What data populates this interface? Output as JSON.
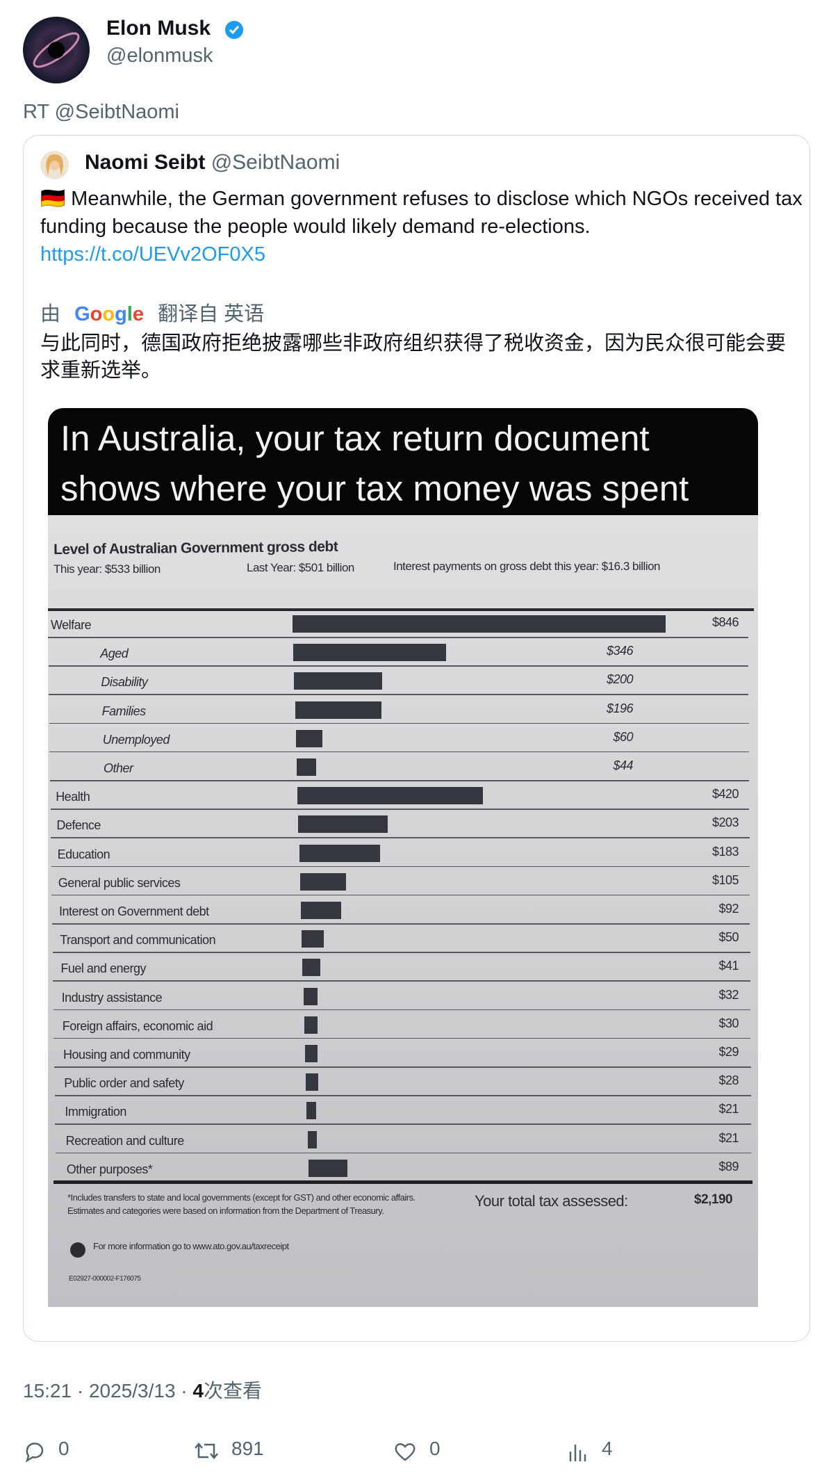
{
  "author": {
    "name": "Elon Musk",
    "handle": "@elonmusk"
  },
  "retweet_label": "RT @SeibtNaomi",
  "quoted": {
    "name": "Naomi Seibt",
    "handle": "@SeibtNaomi",
    "flag": "🇩🇪",
    "text": "Meanwhile, the German government refuses to disclose which NGOs received tax funding because the people would likely demand re-elections.",
    "link": "https://t.co/UEVv2OF0X5",
    "translation_prefix": "由",
    "translation_brand": "Google",
    "translation_suffix": "翻译自 英语",
    "translated_text": "与此同时，德国政府拒绝披露哪些非政府组织获得了税收资金，因为民众很可能会要求重新选举。"
  },
  "image": {
    "banner": [
      "In Australia, your tax return document",
      "shows where your tax money was spent"
    ],
    "debt_title": "Level of Australian Government gross debt",
    "debt_this_year": "This year: $533 billion",
    "debt_last_year": "Last Year: $501 billion",
    "debt_interest": "Interest payments on gross debt this year: $16.3 billion",
    "rows": [
      {
        "label": "Welfare",
        "value": 846,
        "value_label": "$846",
        "items": [
          {
            "label": "Aged",
            "value": 346,
            "value_label": "$346"
          },
          {
            "label": "Disability",
            "value": 200,
            "value_label": "$200"
          },
          {
            "label": "Families",
            "value": 196,
            "value_label": "$196"
          },
          {
            "label": "Unemployed",
            "value": 60,
            "value_label": "$60"
          },
          {
            "label": "Other",
            "value": 44,
            "value_label": "$44"
          }
        ]
      },
      {
        "label": "Health",
        "value": 420,
        "value_label": "$420"
      },
      {
        "label": "Defence",
        "value": 203,
        "value_label": "$203"
      },
      {
        "label": "Education",
        "value": 183,
        "value_label": "$183"
      },
      {
        "label": "General public services",
        "value": 105,
        "value_label": "$105"
      },
      {
        "label": "Interest on Government debt",
        "value": 92,
        "value_label": "$92"
      },
      {
        "label": "Transport and communication",
        "value": 50,
        "value_label": "$50"
      },
      {
        "label": "Fuel and energy",
        "value": 41,
        "value_label": "$41"
      },
      {
        "label": "Industry assistance",
        "value": 32,
        "value_label": "$32"
      },
      {
        "label": "Foreign affairs, economic aid",
        "value": 30,
        "value_label": "$30"
      },
      {
        "label": "Housing and community",
        "value": 29,
        "value_label": "$29"
      },
      {
        "label": "Public order and safety",
        "value": 28,
        "value_label": "$28"
      },
      {
        "label": "Immigration",
        "value": 21,
        "value_label": "$21"
      },
      {
        "label": "Recreation and culture",
        "value": 21,
        "value_label": "$21"
      },
      {
        "label": "Other purposes*",
        "value": 89,
        "value_label": "$89"
      }
    ],
    "footnote": [
      "*Includes transfers to state and local governments (except for GST) and other economic affairs.",
      "Estimates and categories were based on information from the Department of Treasury."
    ],
    "total_label": "Your total tax assessed:",
    "total": "$2,190",
    "more_info": "For more information go to www.ato.gov.au/taxreceipt",
    "code": "E02927-000002-F176075"
  },
  "meta": {
    "time": "15:21 · 2025/3/13 · ",
    "views": "4",
    "views_label": "次查看"
  },
  "actions": {
    "replies": "0",
    "retweets": "891",
    "likes": "0",
    "views": "4"
  }
}
